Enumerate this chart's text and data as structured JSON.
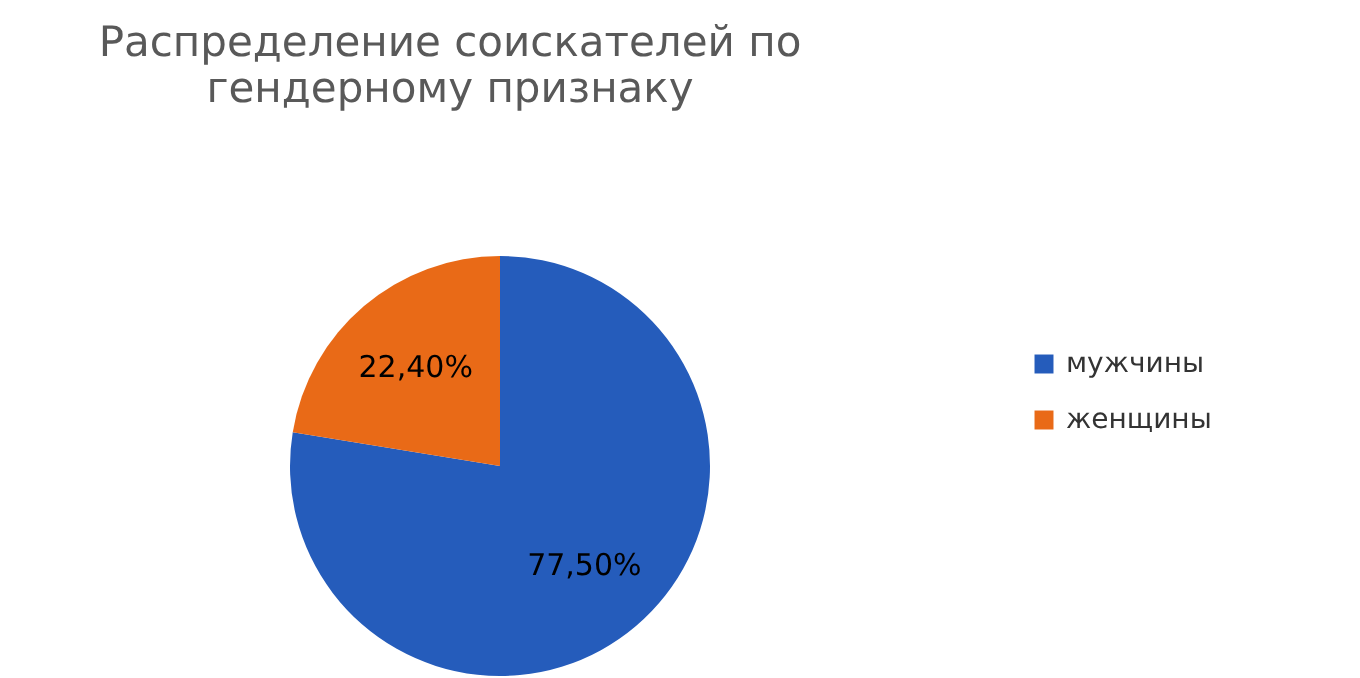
{
  "chart_data": {
    "type": "pie",
    "title": "Распределение соискателей по гендерному признаку",
    "categories": [
      "мужчины",
      "женщины"
    ],
    "values": [
      77.5,
      22.4
    ],
    "colors": [
      "#255cbb",
      "#e96a17"
    ],
    "value_labels": [
      "77,50%",
      "22,40%"
    ],
    "legend": "right"
  }
}
